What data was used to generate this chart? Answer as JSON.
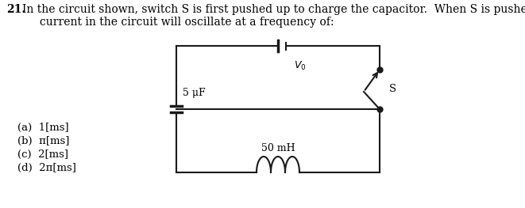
{
  "title_num": "21.",
  "title_text": "In the circuit shown, switch S is first pushed up to charge the capacitor.  When S is pushed down, the\n     current in the circuit will oscillate at a frequency of:",
  "options": [
    "(a)  1[ms]",
    "(b)  π[ms]",
    "(c)  2[ms]",
    "(d)  2π[ms]"
  ],
  "cap_label": "5 μF",
  "V0_label": "$V_0$",
  "inductor_label": "50 mH",
  "switch_label": "S",
  "line_color": "#1a1a1a",
  "line_width": 1.5,
  "bg_color": "#ffffff",
  "text_color": "#000000"
}
